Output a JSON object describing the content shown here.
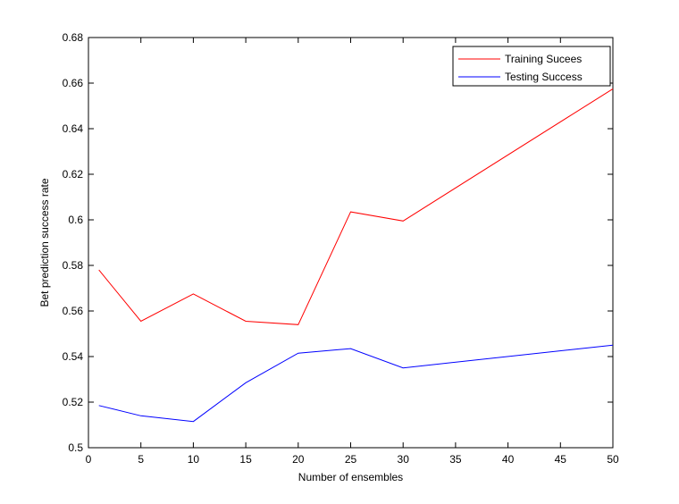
{
  "chart_data": {
    "type": "line",
    "title": "",
    "xlabel": "Number of ensembles",
    "ylabel": "Bet prediction success rate",
    "xlim": [
      0,
      50
    ],
    "ylim": [
      0.5,
      0.68
    ],
    "xticks": [
      0,
      5,
      10,
      15,
      20,
      25,
      30,
      35,
      40,
      45,
      50
    ],
    "yticks": [
      0.5,
      0.52,
      0.54,
      0.56,
      0.58,
      0.6,
      0.62,
      0.64,
      0.66,
      0.68
    ],
    "xtick_labels": [
      "0",
      "5",
      "10",
      "15",
      "20",
      "25",
      "30",
      "35",
      "40",
      "45",
      "50"
    ],
    "ytick_labels": [
      "0.5",
      "0.52",
      "0.54",
      "0.56",
      "0.58",
      "0.6",
      "0.62",
      "0.64",
      "0.66",
      "0.68"
    ],
    "grid": false,
    "legend_position": "top-right",
    "series": [
      {
        "name": "Training Sucees",
        "color": "#ff0000",
        "x": [
          1,
          5,
          10,
          15,
          20,
          25,
          30,
          50
        ],
        "y": [
          0.578,
          0.5555,
          0.5675,
          0.5555,
          0.554,
          0.6035,
          0.5995,
          0.6575
        ]
      },
      {
        "name": "Testing Success",
        "color": "#0000ff",
        "x": [
          1,
          5,
          10,
          15,
          20,
          25,
          30,
          50
        ],
        "y": [
          0.5185,
          0.514,
          0.5115,
          0.5285,
          0.5415,
          0.5435,
          0.535,
          0.545
        ]
      }
    ]
  }
}
